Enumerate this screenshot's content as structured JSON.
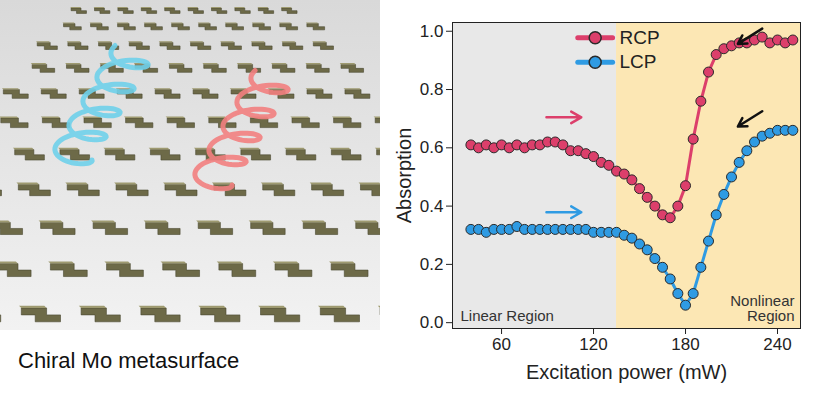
{
  "illustration": {
    "caption": "Chiral Mo metasurface"
  },
  "chart_data": {
    "type": "line",
    "x_label": "Excitation power (mW)",
    "y_label": "Absorption",
    "xlim": [
      28,
      255
    ],
    "xticks": [
      60,
      120,
      180,
      240
    ],
    "ylim": [
      -0.02,
      1.03
    ],
    "yticks": [
      {
        "value": 0,
        "label": "0.0"
      },
      {
        "value": 0.2,
        "label": "0.2"
      },
      {
        "value": 0.4,
        "label": "0.4"
      },
      {
        "value": 0.6,
        "label": "0.6"
      },
      {
        "value": 0.8,
        "label": "0.8"
      },
      {
        "value": 1,
        "label": "1.0"
      }
    ],
    "legend": "top",
    "marker": "circle",
    "regions": [
      {
        "label": "Linear Region",
        "range": [
          28,
          135
        ],
        "color": "#e8e8e8"
      },
      {
        "label": "Nonlinear Region",
        "range": [
          135,
          255
        ],
        "color": "#fce7b4"
      }
    ],
    "x": [
      40,
      45,
      50,
      55,
      60,
      65,
      70,
      75,
      80,
      85,
      90,
      95,
      100,
      105,
      110,
      115,
      120,
      125,
      130,
      135,
      140,
      145,
      150,
      155,
      160,
      165,
      170,
      175,
      180,
      185,
      190,
      195,
      200,
      205,
      210,
      215,
      220,
      225,
      230,
      235,
      240,
      245,
      250
    ],
    "series": [
      {
        "name": "RCP",
        "color": "#dc3f6b",
        "values": [
          0.61,
          0.6,
          0.61,
          0.6,
          0.61,
          0.6,
          0.61,
          0.6,
          0.61,
          0.61,
          0.62,
          0.62,
          0.61,
          0.59,
          0.59,
          0.58,
          0.57,
          0.55,
          0.54,
          0.52,
          0.51,
          0.49,
          0.46,
          0.43,
          0.4,
          0.37,
          0.36,
          0.4,
          0.47,
          0.63,
          0.76,
          0.86,
          0.92,
          0.94,
          0.95,
          0.96,
          0.96,
          0.97,
          0.98,
          0.96,
          0.97,
          0.96,
          0.97
        ]
      },
      {
        "name": "LCP",
        "color": "#2f9be3",
        "values": [
          0.32,
          0.32,
          0.31,
          0.32,
          0.32,
          0.32,
          0.33,
          0.32,
          0.32,
          0.32,
          0.32,
          0.32,
          0.32,
          0.32,
          0.32,
          0.32,
          0.31,
          0.31,
          0.31,
          0.31,
          0.3,
          0.29,
          0.27,
          0.25,
          0.22,
          0.19,
          0.15,
          0.1,
          0.06,
          0.1,
          0.19,
          0.28,
          0.37,
          0.44,
          0.5,
          0.55,
          0.59,
          0.62,
          0.64,
          0.65,
          0.66,
          0.66,
          0.66
        ]
      }
    ]
  }
}
